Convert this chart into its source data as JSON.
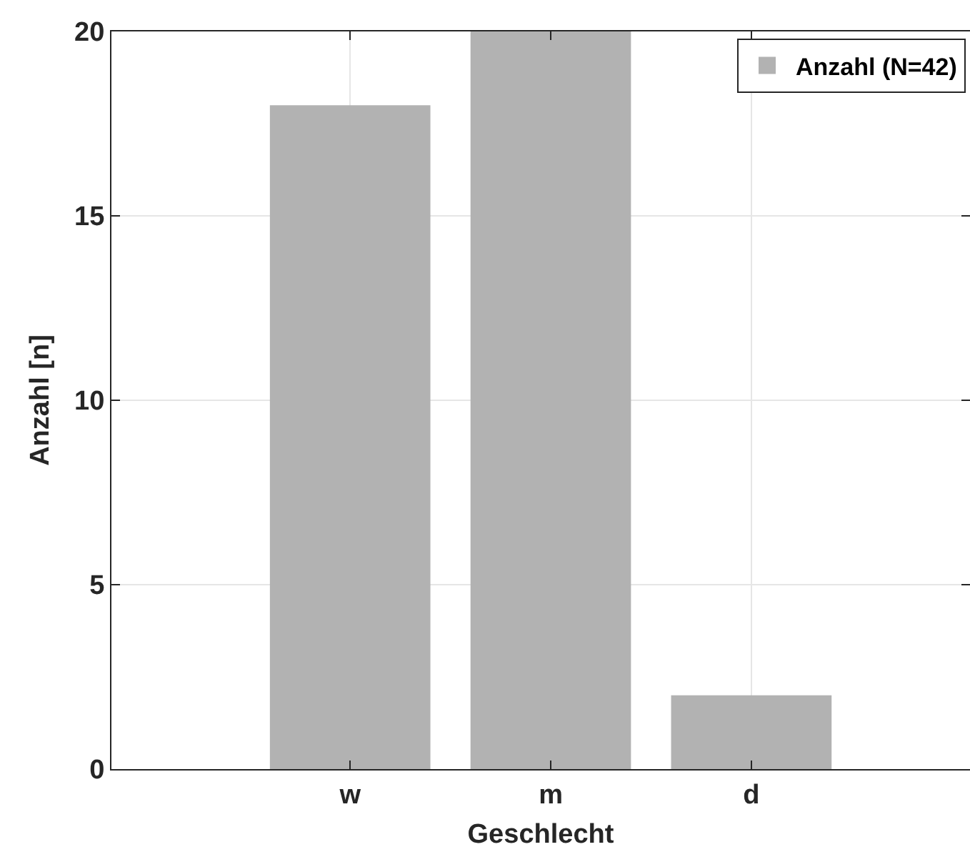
{
  "chart_data": {
    "type": "bar",
    "xlabel": "Geschlecht",
    "ylabel": "Anzahl [n]",
    "categories": [
      "w",
      "m",
      "d"
    ],
    "series": [
      {
        "name": "Anzahl (N=42)",
        "color": "#b2b2b2",
        "values": [
          18,
          20,
          2
        ]
      }
    ],
    "ylim": [
      0,
      20
    ],
    "yticks": [
      0,
      5,
      10,
      15,
      20
    ],
    "grid": true,
    "legend": "top right"
  }
}
